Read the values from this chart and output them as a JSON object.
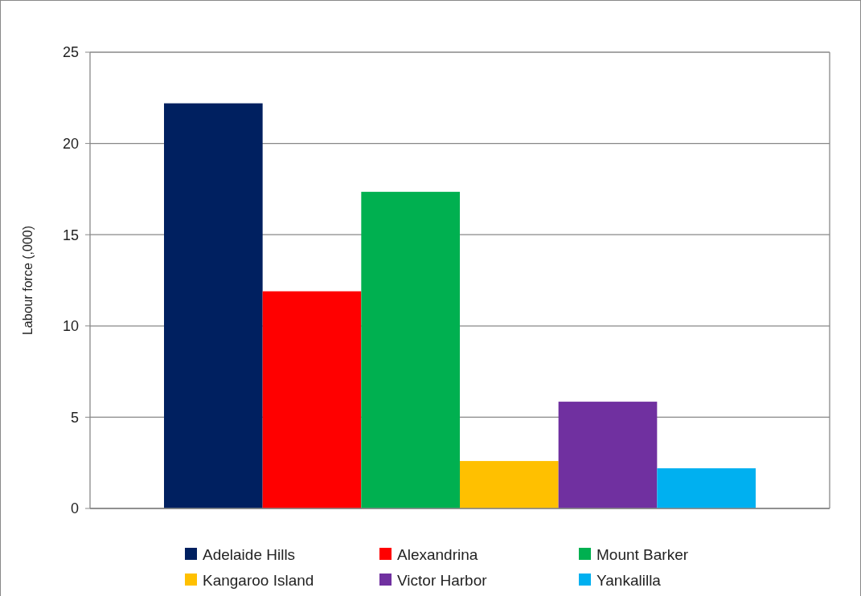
{
  "chart_data": {
    "type": "bar",
    "ylabel": "Labour force (,000)",
    "categories": [
      null
    ],
    "series": [
      {
        "name": "Adelaide Hills",
        "color": "#002060",
        "values": [
          22.2
        ]
      },
      {
        "name": "Alexandrina",
        "color": "#ff0000",
        "values": [
          11.9
        ]
      },
      {
        "name": "Mount  Barker",
        "color": "#00b050",
        "values": [
          17.35
        ]
      },
      {
        "name": "Kangaroo Island",
        "color": "#ffc000",
        "values": [
          2.6
        ]
      },
      {
        "name": "Victor Harbor",
        "color": "#7030a0",
        "values": [
          5.85
        ]
      },
      {
        "name": "Yankalilla",
        "color": "#00b0f0",
        "values": [
          2.2
        ]
      }
    ],
    "ylim": [
      0,
      25
    ],
    "yticks": [
      0,
      5,
      10,
      15,
      20,
      25
    ],
    "grid": "y",
    "legend": "bottom"
  }
}
